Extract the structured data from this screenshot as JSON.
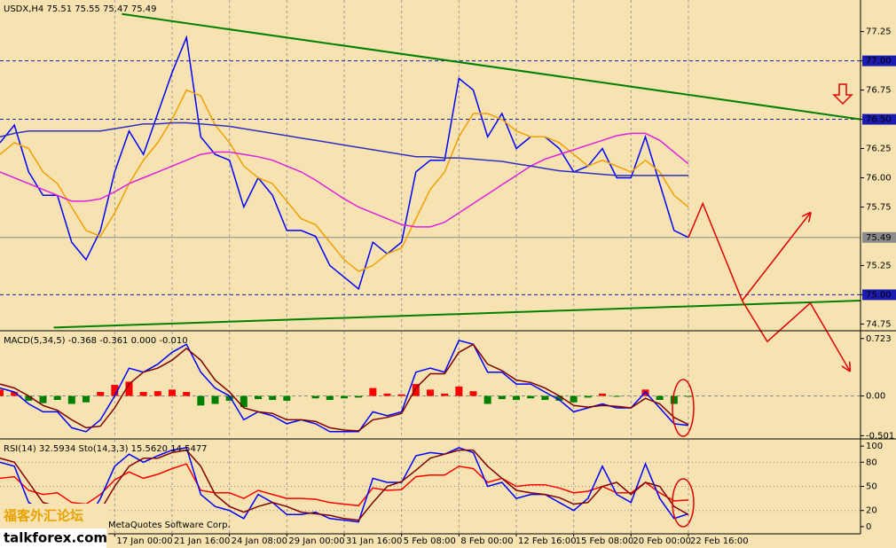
{
  "chart_data": [
    {
      "type": "line",
      "title": "USDX,H4  75.51 75.55 75.47 75.49",
      "xlim": [
        0,
        240
      ],
      "ylim": [
        74.7,
        77.52
      ],
      "grid": true,
      "yticks": [
        74.75,
        {
          "value": 75,
          "label": "75.00"
        },
        75.25,
        75.75,
        {
          "value": 76,
          "label": "76.00"
        },
        76.25,
        {
          "value": 76.5,
          "label": "76.50"
        },
        76.75,
        {
          "value": 77,
          "label": "77.00"
        },
        77.25
      ],
      "levels": [
        77,
        76.5,
        75
      ],
      "last": 75.49,
      "x": [
        0,
        4,
        8,
        12,
        16,
        20,
        24,
        28,
        32,
        36,
        40,
        44,
        48,
        52,
        56,
        60,
        64,
        68,
        72,
        76,
        80,
        84,
        88,
        92,
        96,
        100,
        104,
        108,
        112,
        116,
        120,
        124,
        128,
        132,
        136,
        140,
        144,
        148,
        152,
        156,
        160,
        164,
        168,
        172,
        176,
        180,
        184,
        188,
        192
      ],
      "series": [
        {
          "name": "USDX",
          "color": "#0000ff",
          "values": [
            76.3,
            76.45,
            76.05,
            75.85,
            75.85,
            75.45,
            75.3,
            75.55,
            76.05,
            76.4,
            76.2,
            76.55,
            76.9,
            77.2,
            76.35,
            76.2,
            76.15,
            75.75,
            76.0,
            75.85,
            75.55,
            75.55,
            75.5,
            75.25,
            75.15,
            75.05,
            75.45,
            75.35,
            75.45,
            76.05,
            76.15,
            76.15,
            76.85,
            76.75,
            76.35,
            76.55,
            76.25,
            76.35,
            76.35,
            76.25,
            76.05,
            76.1,
            76.25,
            76.0,
            76.0,
            76.35,
            75.95,
            75.55,
            75.49
          ]
        },
        {
          "name": "MA fast",
          "color": "#f0a000",
          "values": [
            76.2,
            76.3,
            76.25,
            76.05,
            75.95,
            75.75,
            75.55,
            75.5,
            75.7,
            75.95,
            76.15,
            76.3,
            76.5,
            76.75,
            76.7,
            76.45,
            76.3,
            76.1,
            76.0,
            75.95,
            75.8,
            75.65,
            75.6,
            75.45,
            75.3,
            75.2,
            75.25,
            75.35,
            75.4,
            75.65,
            75.9,
            76.05,
            76.35,
            76.55,
            76.55,
            76.5,
            76.4,
            76.35,
            76.35,
            76.3,
            76.2,
            76.1,
            76.15,
            76.1,
            76.05,
            76.15,
            76.05,
            75.85,
            75.75
          ]
        },
        {
          "name": "MA mid",
          "color": "#e020e0",
          "values": [
            76.05,
            76.0,
            75.95,
            75.9,
            75.85,
            75.8,
            75.8,
            75.82,
            75.88,
            75.95,
            76.0,
            76.05,
            76.1,
            76.15,
            76.2,
            76.22,
            76.22,
            76.2,
            76.18,
            76.15,
            76.1,
            76.05,
            75.98,
            75.9,
            75.82,
            75.75,
            75.7,
            75.65,
            75.6,
            75.58,
            75.58,
            75.62,
            75.7,
            75.78,
            75.86,
            75.94,
            76.02,
            76.1,
            76.16,
            76.2,
            76.24,
            76.28,
            76.32,
            76.36,
            76.38,
            76.38,
            76.32,
            76.22,
            76.12
          ]
        },
        {
          "name": "MA slow",
          "color": "#3030c0",
          "values": [
            76.35,
            76.38,
            76.4,
            76.4,
            76.4,
            76.4,
            76.4,
            76.4,
            76.42,
            76.44,
            76.46,
            76.46,
            76.47,
            76.47,
            76.46,
            76.45,
            76.44,
            76.42,
            76.4,
            76.38,
            76.36,
            76.34,
            76.32,
            76.3,
            76.28,
            76.26,
            76.24,
            76.22,
            76.2,
            76.18,
            76.18,
            76.17,
            76.17,
            76.16,
            76.15,
            76.14,
            76.12,
            76.1,
            76.08,
            76.06,
            76.05,
            76.04,
            76.03,
            76.02,
            76.02,
            76.02,
            76.02,
            76.02,
            76.02
          ]
        }
      ],
      "trendlines": [
        {
          "color": "#008000",
          "x": [
            34,
            240
          ],
          "values": [
            77.4,
            76.5
          ]
        },
        {
          "color": "#008000",
          "x": [
            15,
            240
          ],
          "values": [
            74.72,
            74.95
          ]
        }
      ],
      "forecast": [
        {
          "color": "#e00000",
          "x": [
            192,
            196,
            207,
            214,
            226,
            237
          ],
          "values": [
            75.49,
            75.78,
            74.95,
            74.6,
            74.93,
            74.35
          ]
        },
        {
          "color": "#e00000",
          "x": [
            207,
            226
          ],
          "values": [
            74.95,
            75.7
          ]
        }
      ]
    },
    {
      "type": "macd",
      "title": "MACD(5,34,5) -0.368 -0.361 0.000 -0.010",
      "xlim": [
        0,
        240
      ],
      "ylim": [
        -0.53,
        0.81
      ],
      "grid": true,
      "yticks": [
        -0.501,
        {
          "value": 0,
          "label": "0.00"
        },
        0.723
      ],
      "levels": [
        0
      ],
      "x": [
        0,
        4,
        8,
        12,
        16,
        20,
        24,
        28,
        32,
        36,
        40,
        44,
        48,
        52,
        56,
        60,
        64,
        68,
        72,
        76,
        80,
        84,
        88,
        92,
        96,
        100,
        104,
        108,
        112,
        116,
        120,
        124,
        128,
        132,
        136,
        140,
        144,
        148,
        152,
        156,
        160,
        164,
        168,
        172,
        176,
        180,
        184,
        188,
        192
      ],
      "histogram": {
        "up": "#ff0000",
        "down": "#008000",
        "values": [
          0.08,
          0.05,
          -0.06,
          -0.09,
          -0.05,
          -0.1,
          -0.08,
          0.05,
          0.14,
          0.18,
          0.05,
          0.06,
          0.08,
          0.05,
          -0.12,
          -0.1,
          -0.06,
          -0.14,
          -0.04,
          -0.05,
          -0.06,
          0.0,
          -0.03,
          -0.05,
          -0.03,
          -0.02,
          0.1,
          0.03,
          0.02,
          0.15,
          0.08,
          0.03,
          0.12,
          0.06,
          -0.1,
          -0.04,
          -0.05,
          -0.03,
          -0.05,
          -0.06,
          -0.08,
          -0.02,
          0.03,
          -0.01,
          0.0,
          0.08,
          -0.05,
          -0.1,
          -0.01
        ]
      },
      "series": [
        {
          "name": "MACD",
          "color": "#0000ff",
          "values": [
            0.1,
            0.05,
            -0.1,
            -0.2,
            -0.2,
            -0.4,
            -0.45,
            -0.3,
            0.0,
            0.35,
            0.3,
            0.4,
            0.55,
            0.65,
            0.3,
            0.1,
            0.0,
            -0.3,
            -0.2,
            -0.25,
            -0.35,
            -0.3,
            -0.35,
            -0.45,
            -0.45,
            -0.45,
            -0.2,
            -0.25,
            -0.2,
            0.3,
            0.35,
            0.3,
            0.7,
            0.65,
            0.3,
            0.3,
            0.15,
            0.15,
            0.05,
            -0.05,
            -0.2,
            -0.15,
            -0.1,
            -0.15,
            -0.15,
            0.05,
            -0.15,
            -0.35,
            -0.37
          ]
        },
        {
          "name": "Signal",
          "color": "#800000",
          "values": [
            0.15,
            0.1,
            0.0,
            -0.12,
            -0.18,
            -0.3,
            -0.4,
            -0.38,
            -0.15,
            0.15,
            0.3,
            0.35,
            0.45,
            0.6,
            0.45,
            0.2,
            0.05,
            -0.15,
            -0.2,
            -0.22,
            -0.3,
            -0.3,
            -0.32,
            -0.4,
            -0.43,
            -0.44,
            -0.3,
            -0.27,
            -0.22,
            0.1,
            0.28,
            0.28,
            0.55,
            0.65,
            0.4,
            0.32,
            0.2,
            0.17,
            0.1,
            0.0,
            -0.12,
            -0.14,
            -0.12,
            -0.13,
            -0.15,
            -0.03,
            -0.1,
            -0.27,
            -0.36
          ]
        }
      ]
    },
    {
      "type": "oscillator",
      "title": "RSI(14) 32.5934 Sto(14,3,3) 15.5620 14.5477",
      "xlim": [
        0,
        240
      ],
      "ylim": [
        -8.9,
        107.8
      ],
      "grid": true,
      "yticks": [
        0,
        20,
        50,
        80,
        100
      ],
      "levels": [
        20,
        50,
        80
      ],
      "xticks": [
        {
          "value": 32,
          "label": "17 Jan 00:00"
        },
        {
          "value": 48,
          "label": "21 Jan 16:00"
        },
        {
          "value": 64,
          "label": "24 Jan 08:00"
        },
        {
          "value": 80,
          "label": "29 Jan 00:00"
        },
        {
          "value": 96,
          "label": "31 Jan 16:00"
        },
        {
          "value": 112,
          "label": "5 Feb 08:00"
        },
        {
          "value": 128,
          "label": "8 Feb 00:00"
        },
        {
          "value": 144,
          "label": "12 Feb 16:00"
        },
        {
          "value": 160,
          "label": "15 Feb 08:00"
        },
        {
          "value": 176,
          "label": "20 Feb 00:00"
        },
        {
          "value": 192,
          "label": "22 Feb 16:00"
        }
      ],
      "x": [
        0,
        4,
        8,
        12,
        16,
        20,
        24,
        28,
        32,
        36,
        40,
        44,
        48,
        52,
        56,
        60,
        64,
        68,
        72,
        76,
        80,
        84,
        88,
        92,
        96,
        100,
        104,
        108,
        112,
        116,
        120,
        124,
        128,
        132,
        136,
        140,
        144,
        148,
        152,
        156,
        160,
        164,
        168,
        172,
        176,
        180,
        184,
        188,
        192
      ],
      "series": [
        {
          "name": "RSI",
          "color": "#ff0000",
          "values": [
            60,
            62,
            45,
            40,
            42,
            30,
            28,
            40,
            58,
            68,
            60,
            65,
            72,
            78,
            45,
            42,
            42,
            35,
            45,
            40,
            35,
            35,
            34,
            30,
            28,
            26,
            48,
            45,
            46,
            62,
            64,
            64,
            75,
            72,
            55,
            60,
            50,
            52,
            52,
            48,
            42,
            44,
            50,
            42,
            42,
            55,
            42,
            32,
            33
          ]
        },
        {
          "name": "Sto",
          "color": "#0000ff",
          "values": [
            80,
            75,
            30,
            20,
            25,
            8,
            5,
            35,
            75,
            90,
            80,
            88,
            95,
            98,
            40,
            25,
            20,
            10,
            40,
            30,
            15,
            15,
            18,
            10,
            8,
            6,
            60,
            55,
            55,
            88,
            92,
            90,
            98,
            92,
            50,
            55,
            35,
            40,
            40,
            30,
            20,
            35,
            75,
            40,
            30,
            78,
            35,
            10,
            16
          ]
        },
        {
          "name": "Sto signal",
          "color": "#800000",
          "values": [
            85,
            80,
            55,
            30,
            25,
            15,
            10,
            20,
            50,
            75,
            85,
            85,
            92,
            95,
            75,
            40,
            25,
            18,
            25,
            30,
            25,
            18,
            16,
            14,
            10,
            8,
            30,
            50,
            56,
            70,
            85,
            90,
            95,
            95,
            75,
            60,
            45,
            42,
            40,
            36,
            28,
            30,
            50,
            55,
            40,
            55,
            50,
            25,
            15
          ]
        }
      ]
    }
  ],
  "copyright": "MetaQuotes Software Corp.",
  "watermark": {
    "name": "福客外汇论坛",
    "site": "talkforex.com"
  }
}
